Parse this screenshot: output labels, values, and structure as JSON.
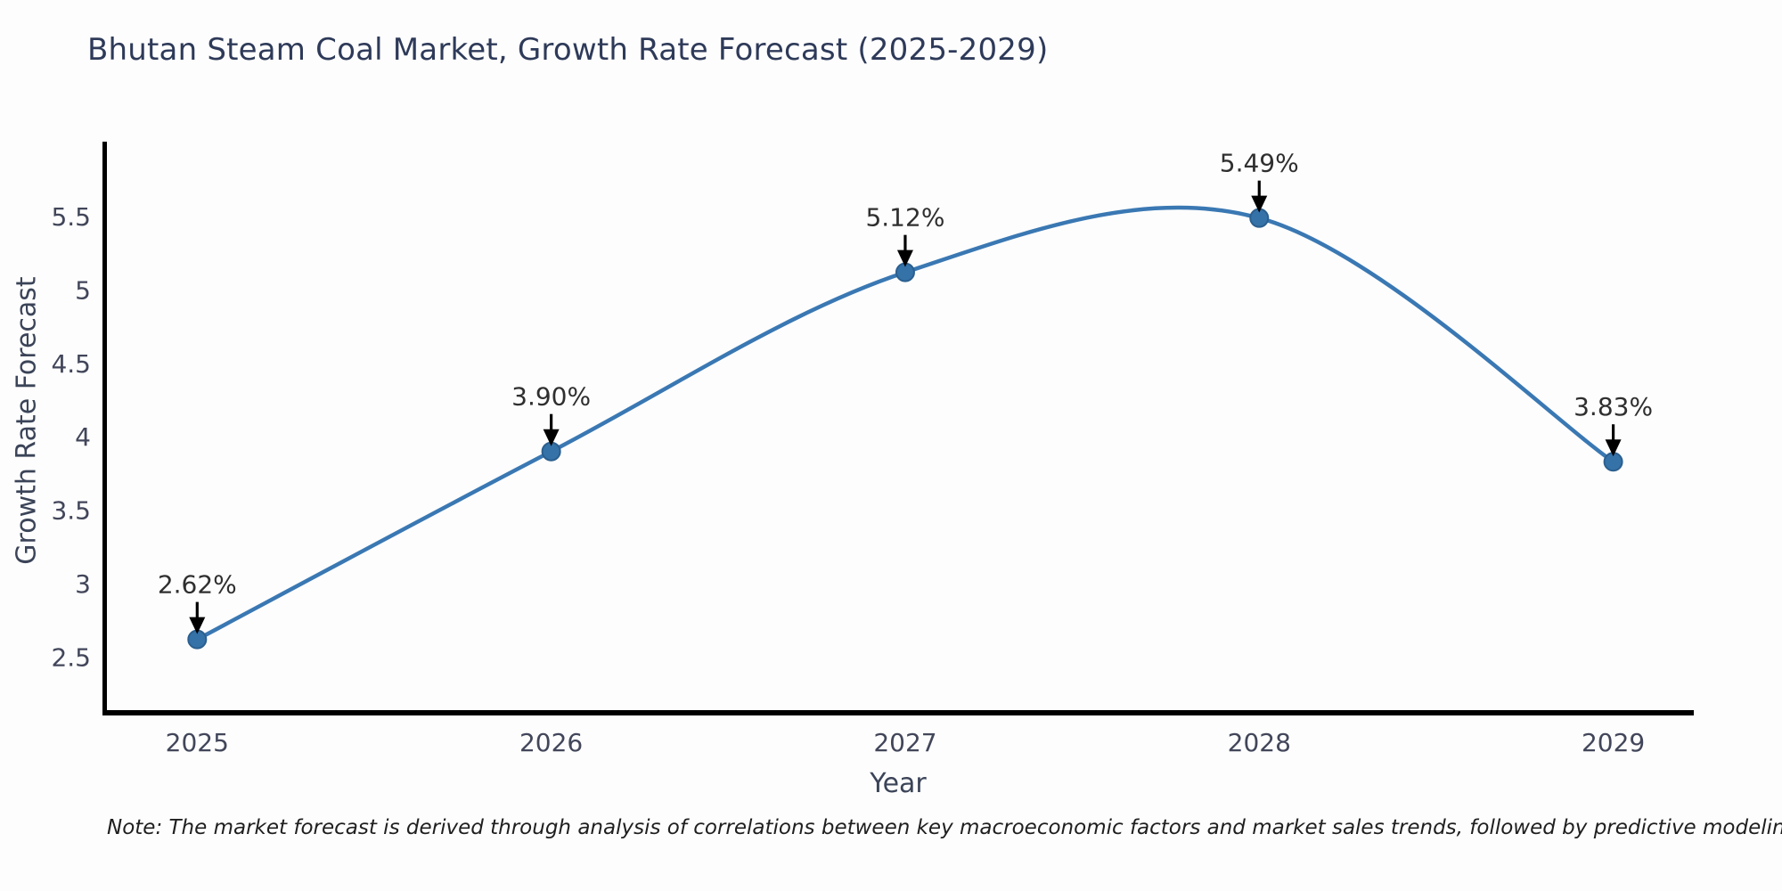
{
  "note": {
    "text": "Note: The market forecast is derived through analysis of correlations between key macroeconomic factors and market sales trends, followed by predictive modeling to project future sales"
  },
  "chart_data": {
    "type": "line",
    "title": "Bhutan Steam Coal Market, Growth Rate Forecast (2025-2029)",
    "xlabel": "Year",
    "ylabel": "Growth Rate Forecast",
    "categories": [
      2025,
      2026,
      2027,
      2028,
      2029
    ],
    "values": [
      2.62,
      3.9,
      5.12,
      5.49,
      3.83
    ],
    "point_labels": [
      "2.62%",
      "3.90%",
      "5.12%",
      "5.49%",
      "3.83%"
    ],
    "yticks": [
      "2.5",
      "3",
      "3.5",
      "4",
      "4.5",
      "5",
      "5.5"
    ],
    "ytick_values": [
      2.5,
      3,
      3.5,
      4,
      4.5,
      5,
      5.5
    ],
    "ylim": [
      2.12,
      6.01
    ],
    "xlim": [
      2024.74,
      2029.22
    ],
    "grid": false,
    "legend": false,
    "smooth": true,
    "colors": {
      "line": "#3a78b3",
      "marker": "#3572a8",
      "marker_edge": "#2b5f8f",
      "annotation_arrow": "#000000",
      "axis_spine": "#000000",
      "title": "#2e3a59",
      "tick_label": "#42465a"
    }
  }
}
